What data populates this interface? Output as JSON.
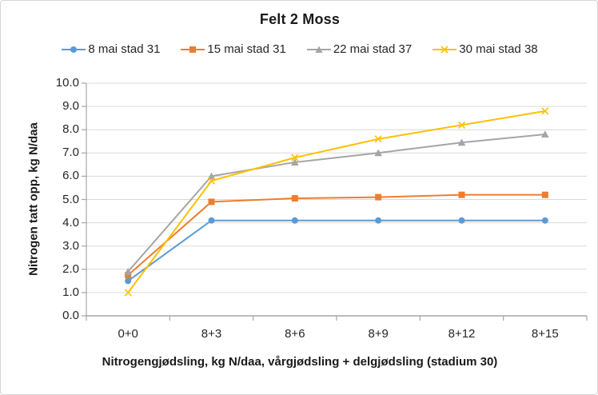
{
  "chart_data": {
    "type": "line",
    "title": "Felt 2 Moss",
    "xlabel": "Nitrogengjødsling, kg N/daa, vårgjødsling + delgjødsling (stadium 30)",
    "ylabel": "Nitrogen tatt opp, kg N/daa",
    "categories": [
      "0+0",
      "8+3",
      "8+6",
      "8+9",
      "8+12",
      "8+15"
    ],
    "ylim": [
      0,
      10
    ],
    "ytick_step": 1,
    "ytick_labels": [
      "0.0",
      "1.0",
      "2.0",
      "3.0",
      "4.0",
      "5.0",
      "6.0",
      "7.0",
      "8.0",
      "9.0",
      "10.0"
    ],
    "grid": "horizontal-gridlines-on",
    "legend_position": "top",
    "series": [
      {
        "name": "8 mai stad 31",
        "color": "#5B9BD5",
        "marker": "circle",
        "values": [
          1.5,
          4.1,
          4.1,
          4.1,
          4.1,
          4.1
        ]
      },
      {
        "name": "15 mai stad 31",
        "color": "#ED7D31",
        "marker": "square",
        "values": [
          1.75,
          4.9,
          5.05,
          5.1,
          5.2,
          5.2
        ]
      },
      {
        "name": "22 mai stad 37",
        "color": "#A5A5A5",
        "marker": "triangle",
        "values": [
          1.9,
          6.0,
          6.6,
          7.0,
          7.45,
          7.8
        ]
      },
      {
        "name": "30 mai stad 38",
        "color": "#FFC000",
        "marker": "x",
        "values": [
          1.0,
          5.8,
          6.8,
          7.6,
          8.2,
          8.8
        ]
      }
    ],
    "colors": {
      "gridline": "#D9D9D9",
      "axis": "#A6A6A6",
      "tick_text": "#262626",
      "title_text": "#1A1A1A"
    }
  }
}
